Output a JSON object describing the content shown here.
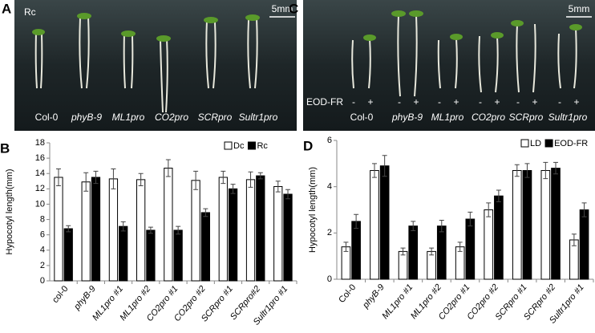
{
  "panels": {
    "A": {
      "letter": "A",
      "light": "Rc",
      "scale": "5mm",
      "genotypes": [
        "Col-0",
        "phyB-9",
        "ML1pro",
        "CO2pro",
        "SCRpro",
        "Sultr1pro"
      ]
    },
    "C": {
      "letter": "C",
      "treatment": "EOD-FR",
      "scale": "5mm",
      "signs": [
        "-",
        "+"
      ],
      "genotypes": [
        "Col-0",
        "phyB-9",
        "ML1pro",
        "CO2pro",
        "SCRpro",
        "Sultr1pro"
      ]
    }
  },
  "chart_data": [
    {
      "type": "bar",
      "letter": "B",
      "ylabel": "Hypocotyl length(mm)",
      "categories": [
        "col-0",
        "phyB-9",
        "ML1pro #1",
        "ML1pro #2",
        "CO2pro #1",
        "CO2pro #2",
        "SCRpro #1",
        "SCRpro#2",
        "Sultr1pro #1"
      ],
      "series": [
        {
          "name": "Dc",
          "color": "#ffffff",
          "values": [
            13.5,
            12.9,
            13.3,
            13.2,
            14.7,
            13.1,
            13.5,
            13.2,
            12.3
          ],
          "errors": [
            1.1,
            1.2,
            1.3,
            0.8,
            1.1,
            1.2,
            0.8,
            1.0,
            0.7
          ]
        },
        {
          "name": "Rc",
          "color": "#000000",
          "values": [
            6.8,
            13.5,
            7.1,
            6.6,
            6.6,
            8.9,
            12.0,
            13.7,
            11.3
          ],
          "errors": [
            0.4,
            0.8,
            0.6,
            0.4,
            0.5,
            0.5,
            0.6,
            0.4,
            0.6
          ]
        }
      ],
      "ylim": [
        0,
        18
      ],
      "yticks": [
        0,
        2,
        4,
        6,
        8,
        10,
        12,
        14,
        16,
        18
      ],
      "legend": "top-right"
    },
    {
      "type": "bar",
      "letter": "D",
      "ylabel": "Hypocotyl length(mm)",
      "categories": [
        "Col-0",
        "phyB-9",
        "ML1pro #1",
        "ML1pro #2",
        "CO2pro #1",
        "CO2pro #2",
        "SCRpro #1",
        "SCRpro #2",
        "Sultr1pro #1"
      ],
      "series": [
        {
          "name": "LD",
          "color": "#ffffff",
          "values": [
            1.4,
            4.7,
            1.2,
            1.2,
            1.4,
            3.0,
            4.7,
            4.7,
            1.7
          ],
          "errors": [
            0.2,
            0.3,
            0.15,
            0.15,
            0.2,
            0.3,
            0.25,
            0.35,
            0.25
          ]
        },
        {
          "name": "EOD-FR",
          "color": "#000000",
          "values": [
            2.5,
            4.9,
            2.3,
            2.3,
            2.6,
            3.6,
            4.7,
            4.8,
            3.0
          ],
          "errors": [
            0.3,
            0.45,
            0.2,
            0.25,
            0.3,
            0.25,
            0.3,
            0.25,
            0.3
          ]
        }
      ],
      "ylim": [
        0,
        6
      ],
      "yticks": [
        0,
        2,
        4,
        6
      ],
      "legend": "top-right"
    }
  ]
}
